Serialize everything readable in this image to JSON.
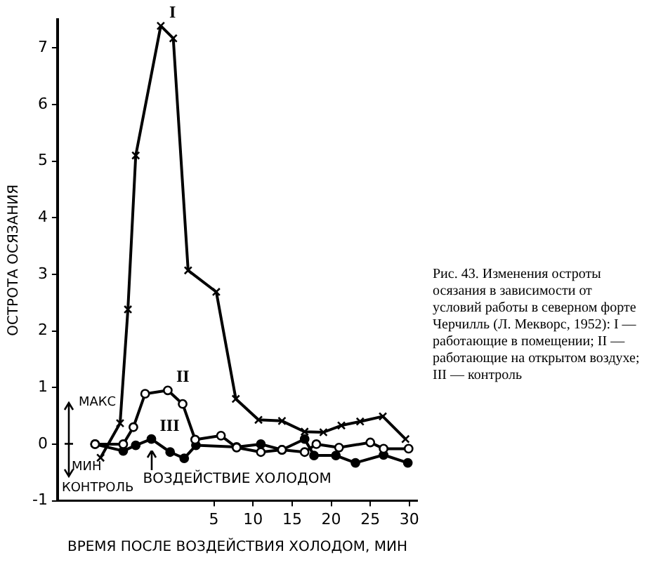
{
  "chart_data": {
    "type": "line",
    "xlabel": "ВРЕМЯ ПОСЛЕ ВОЗДЕЙСТВИЯ ХОЛОДОМ, МИН",
    "ylabel": "ОСТРОТА ОСЯЗАНИЯ",
    "xlim": [
      -15,
      31
    ],
    "xticks": [
      5,
      10,
      15,
      20,
      25,
      30
    ],
    "ylim": [
      -1,
      7.5
    ],
    "yticks": [
      -1,
      0,
      1,
      2,
      3,
      4,
      5,
      6,
      7
    ],
    "grid": false,
    "legend": false,
    "line_style": "solid",
    "series": [
      {
        "name": "I",
        "color": "#000000",
        "marker": "cross",
        "x": [
          -9.5,
          -7,
          -6,
          -5,
          -1.8,
          -0.2,
          1.7,
          5.3,
          7.8,
          10.7,
          13.7,
          16.6,
          19,
          21.3,
          23.7,
          26.6,
          29.5
        ],
        "values": [
          -0.24,
          0.37,
          2.38,
          5.1,
          7.39,
          7.17,
          3.07,
          2.69,
          0.8,
          0.43,
          0.41,
          0.22,
          0.21,
          0.33,
          0.4,
          0.49,
          0.09
        ]
      },
      {
        "name": "II",
        "color": "#000000",
        "marker": "circle",
        "x": [
          -10.2,
          -6.6,
          -5.3,
          -3.8,
          -0.9,
          1,
          2.6,
          5.9,
          7.9,
          11,
          13.7,
          16.6,
          18.1,
          21,
          25,
          26.7,
          29.9
        ],
        "values": [
          0,
          0,
          0.3,
          0.89,
          0.95,
          0.71,
          0.08,
          0.15,
          -0.06,
          -0.14,
          -0.1,
          -0.14,
          0,
          -0.06,
          0.03,
          -0.08,
          -0.08
        ]
      },
      {
        "name": "III",
        "color": "#000000",
        "marker": "circle",
        "x": [
          -10.2,
          -6.6,
          -5,
          -3,
          -0.6,
          1.2,
          2.7,
          7.9,
          11,
          13.7,
          16.6,
          17.8,
          20.6,
          23.1,
          26.7,
          29.8
        ],
        "values": [
          0,
          -0.12,
          -0.02,
          0.09,
          -0.14,
          -0.25,
          -0.02,
          -0.05,
          0,
          -0.1,
          0.09,
          -0.2,
          -0.2,
          -0.33,
          -0.19,
          -0.33
        ]
      }
    ],
    "annotations": [
      "МАКС",
      "МИН",
      "КОНТРОЛЬ",
      "ВОЗДЕЙСТВИЕ ХОЛОДОМ",
      "Рис. 43. Изменения остроты осязания в зависимости от условий работы в северном форте Черчилль (Л. Мекворс, 1952): I — работающие в помещении; II — работающие на открытом воздухе; III — контроль"
    ]
  }
}
